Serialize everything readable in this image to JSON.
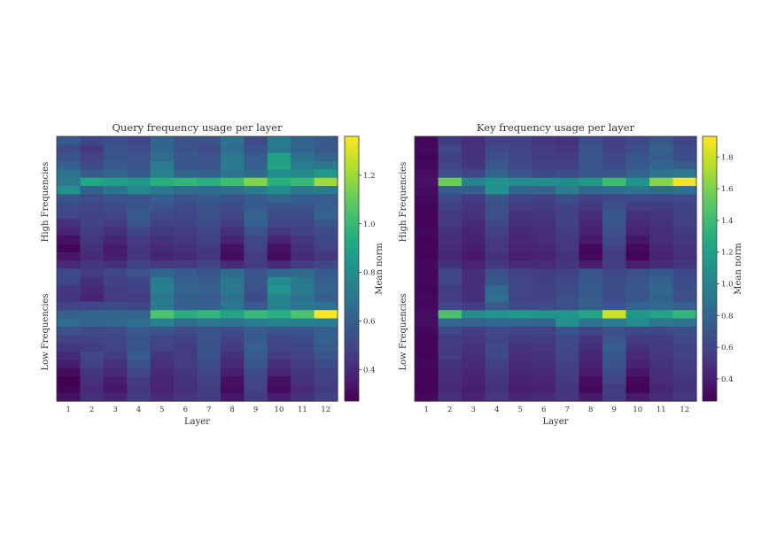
{
  "chart_data": [
    {
      "type": "heatmap",
      "title": "Query frequency usage per layer",
      "xlabel": "Layer",
      "ylabel_top": "High Frequencies",
      "ylabel_bottom": "Low Frequencies",
      "x": [
        "1",
        "2",
        "3",
        "4",
        "5",
        "6",
        "7",
        "8",
        "9",
        "10",
        "11",
        "12"
      ],
      "rows": 32,
      "colorbar": {
        "label": "Mean norm",
        "range": [
          0.27,
          1.36
        ],
        "ticks": [
          "0.4",
          "0.6",
          "0.8",
          "1.0",
          "1.2"
        ],
        "tick_values": [
          0.4,
          0.6,
          0.8,
          1.0,
          1.2
        ]
      },
      "values": [
        [
          0.58,
          0.5,
          0.53,
          0.5,
          0.62,
          0.55,
          0.55,
          0.68,
          0.52,
          0.72,
          0.62,
          0.58
        ],
        [
          0.52,
          0.45,
          0.55,
          0.52,
          0.63,
          0.55,
          0.52,
          0.66,
          0.55,
          0.7,
          0.62,
          0.57
        ],
        [
          0.55,
          0.48,
          0.56,
          0.55,
          0.65,
          0.57,
          0.55,
          0.7,
          0.58,
          0.88,
          0.68,
          0.62
        ],
        [
          0.6,
          0.52,
          0.58,
          0.55,
          0.72,
          0.56,
          0.55,
          0.72,
          0.6,
          0.9,
          0.72,
          0.7
        ],
        [
          0.68,
          0.58,
          0.62,
          0.58,
          0.75,
          0.62,
          0.6,
          0.68,
          0.65,
          0.8,
          0.78,
          0.85
        ],
        [
          0.7,
          0.92,
          0.88,
          0.85,
          0.95,
          0.98,
          0.95,
          1.02,
          1.15,
          0.95,
          1.0,
          1.2
        ],
        [
          0.82,
          0.6,
          0.68,
          0.78,
          0.7,
          0.65,
          0.66,
          0.66,
          0.72,
          0.8,
          0.7,
          0.72
        ],
        [
          0.56,
          0.52,
          0.55,
          0.55,
          0.6,
          0.55,
          0.58,
          0.55,
          0.58,
          0.62,
          0.6,
          0.58
        ],
        [
          0.52,
          0.5,
          0.52,
          0.56,
          0.55,
          0.52,
          0.55,
          0.52,
          0.58,
          0.55,
          0.55,
          0.6
        ],
        [
          0.5,
          0.48,
          0.5,
          0.58,
          0.52,
          0.5,
          0.54,
          0.5,
          0.62,
          0.52,
          0.52,
          0.62
        ],
        [
          0.42,
          0.48,
          0.46,
          0.56,
          0.48,
          0.48,
          0.52,
          0.46,
          0.6,
          0.5,
          0.5,
          0.56
        ],
        [
          0.38,
          0.46,
          0.42,
          0.5,
          0.45,
          0.46,
          0.5,
          0.42,
          0.55,
          0.44,
          0.48,
          0.52
        ],
        [
          0.32,
          0.44,
          0.38,
          0.46,
          0.42,
          0.44,
          0.48,
          0.38,
          0.5,
          0.38,
          0.44,
          0.5
        ],
        [
          0.28,
          0.42,
          0.35,
          0.44,
          0.4,
          0.42,
          0.45,
          0.32,
          0.48,
          0.32,
          0.42,
          0.48
        ],
        [
          0.34,
          0.4,
          0.36,
          0.44,
          0.38,
          0.4,
          0.44,
          0.3,
          0.46,
          0.3,
          0.4,
          0.44
        ],
        [
          0.4,
          0.44,
          0.42,
          0.48,
          0.46,
          0.46,
          0.48,
          0.4,
          0.46,
          0.4,
          0.46,
          0.5
        ],
        [
          0.52,
          0.46,
          0.5,
          0.55,
          0.62,
          0.58,
          0.56,
          0.65,
          0.55,
          0.62,
          0.65,
          0.58
        ],
        [
          0.5,
          0.42,
          0.48,
          0.5,
          0.72,
          0.6,
          0.58,
          0.7,
          0.56,
          0.78,
          0.7,
          0.6
        ],
        [
          0.45,
          0.4,
          0.46,
          0.48,
          0.74,
          0.62,
          0.6,
          0.7,
          0.54,
          0.82,
          0.72,
          0.62
        ],
        [
          0.44,
          0.38,
          0.46,
          0.46,
          0.7,
          0.6,
          0.58,
          0.68,
          0.52,
          0.76,
          0.68,
          0.6
        ],
        [
          0.48,
          0.5,
          0.52,
          0.5,
          0.72,
          0.6,
          0.6,
          0.7,
          0.58,
          0.75,
          0.7,
          0.68
        ],
        [
          0.6,
          0.62,
          0.62,
          0.62,
          1.05,
          0.95,
          0.98,
          0.9,
          1.0,
          0.95,
          1.05,
          1.36
        ],
        [
          0.66,
          0.62,
          0.64,
          0.66,
          0.76,
          0.66,
          0.7,
          0.68,
          0.72,
          0.76,
          0.74,
          0.72
        ],
        [
          0.55,
          0.52,
          0.52,
          0.58,
          0.55,
          0.52,
          0.55,
          0.52,
          0.58,
          0.55,
          0.55,
          0.6
        ],
        [
          0.48,
          0.48,
          0.5,
          0.55,
          0.5,
          0.48,
          0.55,
          0.48,
          0.58,
          0.5,
          0.52,
          0.6
        ],
        [
          0.44,
          0.46,
          0.48,
          0.56,
          0.48,
          0.46,
          0.54,
          0.46,
          0.6,
          0.48,
          0.5,
          0.58
        ],
        [
          0.4,
          0.5,
          0.46,
          0.58,
          0.44,
          0.46,
          0.54,
          0.42,
          0.58,
          0.46,
          0.48,
          0.56
        ],
        [
          0.36,
          0.48,
          0.42,
          0.54,
          0.42,
          0.46,
          0.52,
          0.4,
          0.56,
          0.42,
          0.46,
          0.52
        ],
        [
          0.3,
          0.44,
          0.4,
          0.5,
          0.4,
          0.44,
          0.5,
          0.36,
          0.52,
          0.38,
          0.44,
          0.48
        ],
        [
          0.27,
          0.42,
          0.36,
          0.46,
          0.38,
          0.42,
          0.48,
          0.32,
          0.5,
          0.32,
          0.42,
          0.48
        ],
        [
          0.28,
          0.4,
          0.34,
          0.44,
          0.38,
          0.42,
          0.46,
          0.3,
          0.48,
          0.3,
          0.4,
          0.46
        ],
        [
          0.32,
          0.42,
          0.38,
          0.46,
          0.4,
          0.44,
          0.46,
          0.34,
          0.46,
          0.36,
          0.42,
          0.48
        ]
      ]
    },
    {
      "type": "heatmap",
      "title": "Key frequency usage per layer",
      "xlabel": "Layer",
      "ylabel_top": "High Frequencies",
      "ylabel_bottom": "Low Frequencies",
      "x": [
        "1",
        "2",
        "3",
        "4",
        "5",
        "6",
        "7",
        "8",
        "9",
        "10",
        "11",
        "12"
      ],
      "rows": 32,
      "colorbar": {
        "label": "Mean norm",
        "range": [
          0.26,
          1.93
        ],
        "ticks": [
          "0.4",
          "0.6",
          "0.8",
          "1.0",
          "1.2",
          "1.4",
          "1.6",
          "1.8"
        ],
        "tick_values": [
          0.4,
          0.6,
          0.8,
          1.0,
          1.2,
          1.4,
          1.6,
          1.8
        ]
      },
      "values": [
        [
          0.3,
          0.55,
          0.48,
          0.58,
          0.58,
          0.52,
          0.5,
          0.65,
          0.58,
          0.62,
          0.72,
          0.6
        ],
        [
          0.3,
          0.62,
          0.5,
          0.62,
          0.6,
          0.55,
          0.52,
          0.7,
          0.6,
          0.66,
          0.78,
          0.64
        ],
        [
          0.28,
          0.58,
          0.5,
          0.66,
          0.6,
          0.56,
          0.55,
          0.72,
          0.62,
          0.7,
          0.75,
          0.66
        ],
        [
          0.3,
          0.6,
          0.52,
          0.72,
          0.62,
          0.58,
          0.58,
          0.7,
          0.64,
          0.72,
          0.8,
          0.74
        ],
        [
          0.32,
          0.66,
          0.6,
          0.8,
          0.68,
          0.62,
          0.65,
          0.72,
          0.7,
          0.8,
          0.9,
          0.92
        ],
        [
          0.34,
          1.55,
          1.0,
          1.1,
          1.05,
          1.08,
          1.05,
          1.15,
          1.4,
          1.1,
          1.62,
          1.9
        ],
        [
          0.32,
          0.75,
          0.75,
          1.1,
          0.8,
          0.78,
          0.95,
          0.8,
          0.85,
          0.9,
          0.85,
          0.88
        ],
        [
          0.3,
          0.62,
          0.55,
          0.7,
          0.6,
          0.58,
          0.65,
          0.58,
          0.62,
          0.62,
          0.62,
          0.62
        ],
        [
          0.28,
          0.58,
          0.52,
          0.66,
          0.55,
          0.55,
          0.6,
          0.52,
          0.66,
          0.55,
          0.56,
          0.6
        ],
        [
          0.28,
          0.54,
          0.5,
          0.66,
          0.5,
          0.52,
          0.58,
          0.48,
          0.72,
          0.5,
          0.52,
          0.58
        ],
        [
          0.28,
          0.54,
          0.46,
          0.62,
          0.48,
          0.5,
          0.58,
          0.44,
          0.7,
          0.46,
          0.5,
          0.58
        ],
        [
          0.3,
          0.5,
          0.44,
          0.58,
          0.45,
          0.48,
          0.56,
          0.42,
          0.66,
          0.42,
          0.48,
          0.54
        ],
        [
          0.28,
          0.48,
          0.42,
          0.54,
          0.44,
          0.46,
          0.54,
          0.38,
          0.62,
          0.36,
          0.46,
          0.52
        ],
        [
          0.28,
          0.46,
          0.4,
          0.52,
          0.42,
          0.44,
          0.52,
          0.3,
          0.58,
          0.3,
          0.44,
          0.5
        ],
        [
          0.28,
          0.44,
          0.38,
          0.5,
          0.4,
          0.42,
          0.5,
          0.3,
          0.55,
          0.28,
          0.42,
          0.48
        ],
        [
          0.3,
          0.5,
          0.42,
          0.54,
          0.46,
          0.46,
          0.52,
          0.4,
          0.55,
          0.4,
          0.46,
          0.52
        ],
        [
          0.3,
          0.62,
          0.48,
          0.66,
          0.58,
          0.55,
          0.58,
          0.7,
          0.62,
          0.66,
          0.72,
          0.62
        ],
        [
          0.3,
          0.6,
          0.48,
          0.72,
          0.6,
          0.58,
          0.62,
          0.72,
          0.64,
          0.7,
          0.78,
          0.64
        ],
        [
          0.28,
          0.56,
          0.48,
          0.82,
          0.6,
          0.58,
          0.64,
          0.74,
          0.66,
          0.72,
          0.82,
          0.66
        ],
        [
          0.3,
          0.56,
          0.48,
          0.86,
          0.6,
          0.58,
          0.66,
          0.74,
          0.64,
          0.7,
          0.8,
          0.66
        ],
        [
          0.3,
          0.62,
          0.56,
          0.74,
          0.62,
          0.62,
          0.66,
          0.76,
          0.7,
          0.8,
          0.82,
          0.76
        ],
        [
          0.32,
          1.45,
          1.05,
          1.1,
          1.15,
          1.12,
          1.12,
          1.25,
          1.8,
          1.15,
          1.22,
          1.35
        ],
        [
          0.32,
          0.82,
          0.78,
          0.82,
          0.82,
          0.8,
          1.1,
          0.9,
          0.95,
          1.05,
          0.92,
          0.9
        ],
        [
          0.3,
          0.62,
          0.55,
          0.62,
          0.6,
          0.58,
          0.7,
          0.6,
          0.66,
          0.62,
          0.62,
          0.66
        ],
        [
          0.28,
          0.56,
          0.52,
          0.6,
          0.55,
          0.55,
          0.64,
          0.52,
          0.7,
          0.55,
          0.56,
          0.62
        ],
        [
          0.28,
          0.56,
          0.5,
          0.62,
          0.5,
          0.52,
          0.62,
          0.48,
          0.74,
          0.5,
          0.54,
          0.6
        ],
        [
          0.28,
          0.54,
          0.48,
          0.62,
          0.48,
          0.5,
          0.6,
          0.44,
          0.72,
          0.46,
          0.52,
          0.58
        ],
        [
          0.3,
          0.5,
          0.46,
          0.58,
          0.46,
          0.48,
          0.58,
          0.42,
          0.68,
          0.42,
          0.5,
          0.56
        ],
        [
          0.28,
          0.48,
          0.44,
          0.54,
          0.44,
          0.46,
          0.56,
          0.38,
          0.64,
          0.36,
          0.48,
          0.54
        ],
        [
          0.28,
          0.46,
          0.42,
          0.52,
          0.42,
          0.44,
          0.54,
          0.32,
          0.6,
          0.3,
          0.46,
          0.52
        ],
        [
          0.27,
          0.46,
          0.4,
          0.5,
          0.4,
          0.42,
          0.52,
          0.3,
          0.55,
          0.28,
          0.44,
          0.5
        ],
        [
          0.3,
          0.5,
          0.42,
          0.52,
          0.44,
          0.46,
          0.52,
          0.38,
          0.56,
          0.38,
          0.46,
          0.52
        ]
      ]
    }
  ]
}
